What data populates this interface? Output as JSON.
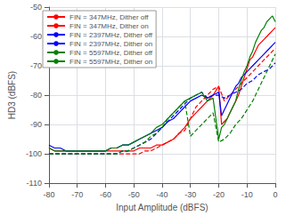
{
  "chart_data": {
    "type": "line",
    "xlabel": "Input Amplitude (dBFS)",
    "ylabel": "HD3 (dBFS)",
    "xlim": [
      -80,
      0
    ],
    "ylim": [
      -110,
      -50
    ],
    "xticks": [
      -80,
      -70,
      -60,
      -50,
      -40,
      -30,
      -20,
      -10,
      0
    ],
    "yticks": [
      -110,
      -100,
      -90,
      -80,
      -70,
      -60,
      -50
    ],
    "grid": true,
    "legend": "upper left",
    "series": [
      {
        "name": "FIN = 347MHz, Dither off",
        "color": "#FF0000",
        "line_style": "dashed",
        "x": [
          -80,
          -78,
          -76,
          -74,
          -72,
          -70,
          -68,
          -66,
          -64,
          -62,
          -60,
          -58,
          -56,
          -54,
          -52,
          -50,
          -48,
          -46,
          -44,
          -42,
          -40,
          -38,
          -36,
          -34,
          -32,
          -30,
          -28,
          -26,
          -24,
          -22,
          -20,
          -18,
          -16,
          -14,
          -12,
          -10,
          -8,
          -6,
          -4,
          -2,
          0
        ],
        "values": [
          -100,
          -100,
          -100,
          -100,
          -100,
          -100,
          -100,
          -100,
          -100,
          -100,
          -100,
          -100,
          -100,
          -100,
          -100,
          -100,
          -100,
          -99,
          -99,
          -98,
          -97,
          -96,
          -95,
          -93,
          -92,
          -88,
          -84,
          -82,
          -80,
          -78,
          -77,
          -82,
          -80,
          -78,
          -76,
          -74,
          -72,
          -70,
          -68,
          -66,
          -64
        ]
      },
      {
        "name": "FIN = 347MHz, Dither on",
        "color": "#FF0000",
        "line_style": "solid",
        "x": [
          -80,
          -78,
          -76,
          -74,
          -72,
          -70,
          -68,
          -66,
          -64,
          -62,
          -60,
          -58,
          -56,
          -54,
          -52,
          -50,
          -48,
          -46,
          -44,
          -42,
          -40,
          -38,
          -36,
          -34,
          -32,
          -30,
          -28,
          -26,
          -24,
          -22,
          -20,
          -19,
          -18,
          -17,
          -16,
          -15,
          -14,
          -13,
          -12,
          -11,
          -10,
          -9,
          -8,
          -7,
          -6,
          -5,
          -4,
          -3,
          -2,
          -1,
          0
        ],
        "values": [
          -98,
          -99,
          -99,
          -99,
          -99,
          -99,
          -99,
          -99,
          -99,
          -99,
          -99,
          -99,
          -99,
          -99,
          -99,
          -99,
          -98,
          -98,
          -98,
          -97,
          -97,
          -96,
          -95,
          -93,
          -91,
          -88,
          -86,
          -84,
          -82,
          -80,
          -77,
          -90,
          -89,
          -88,
          -86,
          -84,
          -82,
          -80,
          -77,
          -74,
          -71,
          -68,
          -67,
          -65,
          -63,
          -62,
          -61,
          -60,
          -59,
          -58,
          -57
        ]
      },
      {
        "name": "FIN = 2397MHz, Dither off",
        "color": "#0000FF",
        "line_style": "dashed",
        "x": [
          -80,
          -78,
          -76,
          -74,
          -72,
          -70,
          -68,
          -66,
          -64,
          -62,
          -60,
          -58,
          -56,
          -54,
          -52,
          -50,
          -48,
          -46,
          -44,
          -42,
          -40,
          -38,
          -36,
          -34,
          -32,
          -30,
          -28,
          -26,
          -24,
          -22,
          -20,
          -18,
          -16,
          -14,
          -12,
          -10,
          -8,
          -6,
          -4,
          -2,
          0
        ],
        "values": [
          -100,
          -100,
          -100,
          -100,
          -100,
          -100,
          -100,
          -100,
          -100,
          -100,
          -100,
          -100,
          -100,
          -99,
          -99,
          -98,
          -97,
          -96,
          -95,
          -93,
          -91,
          -89,
          -87,
          -85,
          -83,
          -81,
          -80,
          -79,
          -81,
          -80,
          -80,
          -81,
          -80,
          -79,
          -78,
          -76,
          -75,
          -73,
          -72,
          -71,
          -69
        ]
      },
      {
        "name": "FIN = 2397MHz, Dither on",
        "color": "#0000FF",
        "line_style": "solid",
        "x": [
          -80,
          -78,
          -76,
          -74,
          -72,
          -70,
          -68,
          -66,
          -64,
          -62,
          -60,
          -58,
          -56,
          -54,
          -52,
          -50,
          -48,
          -46,
          -44,
          -42,
          -40,
          -38,
          -36,
          -34,
          -32,
          -30,
          -28,
          -26,
          -24,
          -22,
          -20,
          -19,
          -18,
          -17,
          -16,
          -15,
          -14,
          -13,
          -12,
          -11,
          -10,
          -9,
          -8,
          -7,
          -6,
          -5,
          -4,
          -3,
          -2,
          -1,
          0
        ],
        "values": [
          -97,
          -98,
          -98,
          -99,
          -99,
          -99,
          -99,
          -99,
          -99,
          -99,
          -99,
          -98,
          -98,
          -97,
          -97,
          -96,
          -95,
          -94,
          -93,
          -92,
          -91,
          -89,
          -88,
          -86,
          -84,
          -82,
          -81,
          -80,
          -81,
          -80,
          -79,
          -87,
          -85,
          -83,
          -81,
          -79,
          -77,
          -76,
          -74,
          -73,
          -72,
          -71,
          -70,
          -69,
          -68,
          -67,
          -66,
          -65,
          -64,
          -63,
          -62
        ]
      },
      {
        "name": "FIN = 5597MHz, Dither off",
        "color": "#008000",
        "line_style": "dashed",
        "x": [
          -80,
          -78,
          -76,
          -74,
          -72,
          -70,
          -68,
          -66,
          -64,
          -62,
          -60,
          -58,
          -56,
          -54,
          -52,
          -50,
          -48,
          -46,
          -44,
          -42,
          -40,
          -38,
          -36,
          -34,
          -32,
          -30,
          -28,
          -26,
          -24,
          -22,
          -20,
          -18,
          -16,
          -14,
          -12,
          -10,
          -8,
          -6,
          -4,
          -2,
          0
        ],
        "values": [
          -100,
          -100,
          -100,
          -100,
          -100,
          -100,
          -100,
          -100,
          -100,
          -100,
          -100,
          -100,
          -100,
          -99,
          -99,
          -98,
          -97,
          -96,
          -94,
          -93,
          -91,
          -88,
          -86,
          -84,
          -82,
          -94,
          -92,
          -90,
          -88,
          -86,
          -96,
          -95,
          -93,
          -90,
          -88,
          -85,
          -82,
          -78,
          -74,
          -70,
          -66
        ]
      },
      {
        "name": "FIN = 5597MHz, Dither on",
        "color": "#008000",
        "line_style": "solid",
        "x": [
          -80,
          -78,
          -76,
          -74,
          -72,
          -70,
          -68,
          -66,
          -64,
          -62,
          -60,
          -58,
          -56,
          -54,
          -52,
          -50,
          -48,
          -46,
          -44,
          -42,
          -40,
          -38,
          -36,
          -34,
          -32,
          -30,
          -28,
          -26,
          -24,
          -22,
          -20,
          -19,
          -18,
          -17,
          -16,
          -15,
          -14,
          -13,
          -12,
          -11,
          -10,
          -9,
          -8,
          -7,
          -6,
          -5,
          -4,
          -3,
          -2,
          -1,
          0
        ],
        "values": [
          -98,
          -99,
          -99,
          -99,
          -99,
          -99,
          -99,
          -99,
          -99,
          -99,
          -99,
          -98,
          -98,
          -97,
          -97,
          -96,
          -95,
          -94,
          -93,
          -91,
          -90,
          -88,
          -86,
          -84,
          -82,
          -81,
          -80,
          -79,
          -82,
          -81,
          -95,
          -91,
          -90,
          -88,
          -86,
          -84,
          -82,
          -78,
          -75,
          -72,
          -70,
          -67,
          -65,
          -62,
          -60,
          -58,
          -57,
          -55,
          -54,
          -53,
          -55
        ]
      }
    ]
  }
}
